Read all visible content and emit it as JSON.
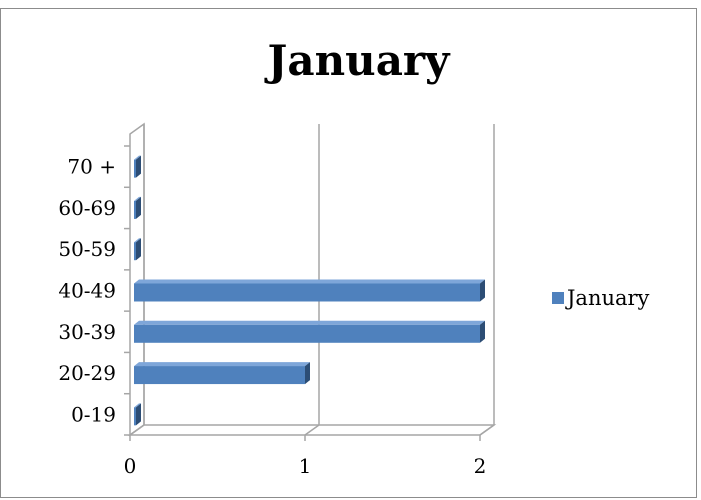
{
  "chart_data": {
    "type": "bar",
    "orientation": "horizontal",
    "style": "3d",
    "title": "January",
    "categories": [
      "0-19",
      "20-29",
      "30-39",
      "40-49",
      "50-59",
      "60-69",
      "70 +"
    ],
    "series": [
      {
        "name": "January",
        "values": [
          0,
          1,
          2,
          2,
          0,
          0,
          0
        ]
      }
    ],
    "xlim": [
      0,
      2
    ],
    "x_ticks": [
      "0",
      "1",
      "2"
    ],
    "grid": "vertical",
    "legend": "right",
    "colors": {
      "bar": "#4f81bd",
      "bar_dark": "#2c4d75",
      "grid": "#a6a6a6"
    }
  }
}
